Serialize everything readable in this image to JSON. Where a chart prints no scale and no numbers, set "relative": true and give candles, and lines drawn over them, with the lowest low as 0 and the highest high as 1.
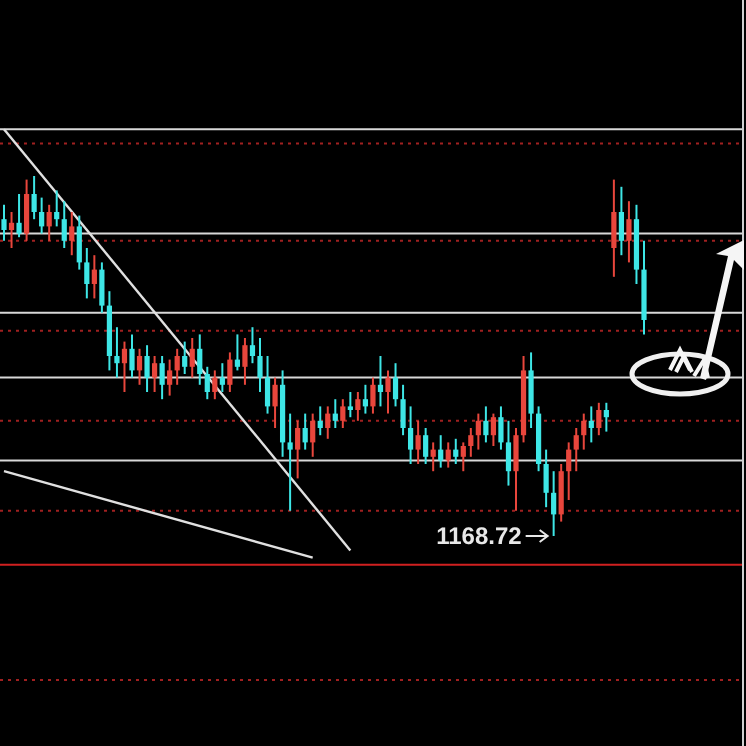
{
  "chart_data": {
    "type": "candlestick",
    "relative": true,
    "categories": [
      null,
      null,
      null,
      null,
      null,
      null,
      null,
      null,
      null,
      null,
      null,
      null,
      null,
      null,
      null,
      null,
      null,
      null,
      null,
      null,
      null,
      null,
      null,
      null,
      null,
      null,
      null,
      null,
      null,
      null,
      null,
      null,
      null,
      null,
      null,
      null,
      null,
      null,
      null,
      null,
      null,
      null,
      null,
      null,
      null,
      null,
      null,
      null,
      null,
      null,
      null,
      null,
      null,
      null,
      null,
      null,
      null,
      null,
      null,
      null,
      null,
      null,
      null,
      null,
      null,
      null,
      null,
      null,
      null,
      null,
      null,
      null,
      null,
      null,
      null,
      null,
      null,
      null,
      null,
      null,
      null,
      null,
      null,
      null,
      null,
      null
    ],
    "ohlc": [
      [
        0.88,
        0.92,
        0.82,
        0.85
      ],
      [
        0.85,
        0.9,
        0.8,
        0.87
      ],
      [
        0.87,
        0.95,
        0.83,
        0.84
      ],
      [
        0.84,
        0.99,
        0.82,
        0.95
      ],
      [
        0.95,
        1.0,
        0.88,
        0.9
      ],
      [
        0.9,
        0.94,
        0.84,
        0.86
      ],
      [
        0.86,
        0.92,
        0.82,
        0.9
      ],
      [
        0.9,
        0.96,
        0.86,
        0.88
      ],
      [
        0.88,
        0.93,
        0.8,
        0.82
      ],
      [
        0.82,
        0.9,
        0.78,
        0.86
      ],
      [
        0.86,
        0.89,
        0.74,
        0.76
      ],
      [
        0.76,
        0.8,
        0.66,
        0.7
      ],
      [
        0.7,
        0.78,
        0.66,
        0.74
      ],
      [
        0.74,
        0.76,
        0.62,
        0.64
      ],
      [
        0.64,
        0.68,
        0.46,
        0.5
      ],
      [
        0.5,
        0.58,
        0.44,
        0.48
      ],
      [
        0.48,
        0.54,
        0.4,
        0.52
      ],
      [
        0.52,
        0.56,
        0.44,
        0.46
      ],
      [
        0.46,
        0.52,
        0.42,
        0.5
      ],
      [
        0.5,
        0.53,
        0.4,
        0.44
      ],
      [
        0.44,
        0.5,
        0.4,
        0.48
      ],
      [
        0.48,
        0.5,
        0.38,
        0.42
      ],
      [
        0.42,
        0.49,
        0.39,
        0.46
      ],
      [
        0.46,
        0.52,
        0.42,
        0.5
      ],
      [
        0.5,
        0.54,
        0.45,
        0.47
      ],
      [
        0.47,
        0.55,
        0.44,
        0.52
      ],
      [
        0.52,
        0.56,
        0.42,
        0.45
      ],
      [
        0.45,
        0.47,
        0.38,
        0.4
      ],
      [
        0.4,
        0.46,
        0.38,
        0.44
      ],
      [
        0.44,
        0.48,
        0.4,
        0.42
      ],
      [
        0.42,
        0.51,
        0.4,
        0.49
      ],
      [
        0.49,
        0.56,
        0.46,
        0.47
      ],
      [
        0.47,
        0.55,
        0.42,
        0.53
      ],
      [
        0.53,
        0.58,
        0.48,
        0.5
      ],
      [
        0.5,
        0.55,
        0.4,
        0.44
      ],
      [
        0.44,
        0.5,
        0.34,
        0.36
      ],
      [
        0.36,
        0.44,
        0.3,
        0.42
      ],
      [
        0.42,
        0.46,
        0.22,
        0.26
      ],
      [
        0.26,
        0.34,
        0.07,
        0.24
      ],
      [
        0.24,
        0.32,
        0.16,
        0.3
      ],
      [
        0.3,
        0.34,
        0.24,
        0.26
      ],
      [
        0.26,
        0.34,
        0.22,
        0.32
      ],
      [
        0.32,
        0.36,
        0.28,
        0.3
      ],
      [
        0.3,
        0.36,
        0.27,
        0.34
      ],
      [
        0.34,
        0.38,
        0.3,
        0.32
      ],
      [
        0.32,
        0.38,
        0.3,
        0.36
      ],
      [
        0.36,
        0.4,
        0.33,
        0.35
      ],
      [
        0.35,
        0.4,
        0.32,
        0.38
      ],
      [
        0.38,
        0.42,
        0.34,
        0.36
      ],
      [
        0.36,
        0.44,
        0.34,
        0.42
      ],
      [
        0.42,
        0.5,
        0.36,
        0.4
      ],
      [
        0.4,
        0.46,
        0.34,
        0.44
      ],
      [
        0.44,
        0.48,
        0.36,
        0.38
      ],
      [
        0.38,
        0.42,
        0.28,
        0.3
      ],
      [
        0.3,
        0.36,
        0.2,
        0.24
      ],
      [
        0.24,
        0.32,
        0.2,
        0.28
      ],
      [
        0.28,
        0.3,
        0.2,
        0.22
      ],
      [
        0.22,
        0.26,
        0.18,
        0.24
      ],
      [
        0.24,
        0.28,
        0.19,
        0.21
      ],
      [
        0.21,
        0.26,
        0.19,
        0.24
      ],
      [
        0.24,
        0.27,
        0.2,
        0.22
      ],
      [
        0.22,
        0.26,
        0.18,
        0.25
      ],
      [
        0.25,
        0.3,
        0.22,
        0.28
      ],
      [
        0.28,
        0.34,
        0.24,
        0.32
      ],
      [
        0.32,
        0.36,
        0.26,
        0.28
      ],
      [
        0.28,
        0.34,
        0.25,
        0.33
      ],
      [
        0.33,
        0.36,
        0.24,
        0.26
      ],
      [
        0.26,
        0.32,
        0.14,
        0.18
      ],
      [
        0.18,
        0.3,
        0.07,
        0.28
      ],
      [
        0.28,
        0.5,
        0.26,
        0.46
      ],
      [
        0.46,
        0.51,
        0.3,
        0.34
      ],
      [
        0.34,
        0.36,
        0.18,
        0.2
      ],
      [
        0.2,
        0.24,
        0.08,
        0.12
      ],
      [
        0.12,
        0.18,
        0.0,
        0.06
      ],
      [
        0.06,
        0.2,
        0.04,
        0.18
      ],
      [
        0.18,
        0.26,
        0.1,
        0.24
      ],
      [
        0.24,
        0.3,
        0.18,
        0.28
      ],
      [
        0.28,
        0.34,
        0.24,
        0.32
      ],
      [
        0.32,
        0.36,
        0.26,
        0.3
      ],
      [
        0.3,
        0.37,
        0.28,
        0.35
      ],
      [
        0.35,
        0.37,
        0.29,
        0.33
      ],
      [
        0.8,
        0.99,
        0.72,
        0.9
      ],
      [
        0.9,
        0.97,
        0.78,
        0.82
      ],
      [
        0.82,
        0.93,
        0.76,
        0.88
      ],
      [
        0.88,
        0.92,
        0.7,
        0.74
      ],
      [
        0.74,
        0.82,
        0.56,
        0.6
      ]
    ],
    "series": [
      {
        "type": "line",
        "color": "#e0e0e0",
        "values": [
          1.13,
          null,
          null,
          null,
          null,
          null,
          null,
          null,
          null,
          null,
          null,
          null,
          null,
          null,
          null,
          null,
          null,
          null,
          null,
          null,
          null,
          null,
          null,
          null,
          null,
          null,
          null,
          null,
          null,
          null,
          null,
          null,
          null,
          null,
          null,
          null,
          null,
          null,
          null,
          null,
          null,
          null,
          null,
          null,
          null,
          null,
          -0.04,
          null,
          null,
          null,
          null,
          null,
          null,
          null,
          null,
          null,
          null,
          null,
          null,
          null,
          null,
          null,
          null,
          null,
          null,
          null,
          null,
          null,
          null,
          null,
          null,
          null,
          null,
          null,
          null,
          null,
          null,
          null,
          null,
          null,
          null,
          null,
          null,
          null,
          null,
          null
        ]
      },
      {
        "type": "line",
        "color": "#e0e0e0",
        "values": [
          0.18,
          null,
          null,
          null,
          null,
          null,
          null,
          null,
          null,
          null,
          null,
          null,
          null,
          null,
          null,
          null,
          null,
          null,
          null,
          null,
          null,
          null,
          null,
          null,
          null,
          null,
          null,
          null,
          null,
          null,
          null,
          null,
          null,
          null,
          null,
          null,
          null,
          null,
          null,
          null,
          null,
          -0.06,
          null,
          null,
          null,
          null,
          null,
          null,
          null,
          null,
          null,
          null,
          null,
          null,
          null,
          null,
          null,
          null,
          null,
          null,
          null,
          null,
          null,
          null,
          null,
          null,
          null,
          null,
          null,
          null,
          null,
          null,
          null,
          null,
          null,
          null,
          null,
          null,
          null,
          null,
          null,
          null,
          null,
          null,
          null,
          null
        ]
      }
    ],
    "ref_lines": [
      {
        "axis": "y",
        "value": 1.13,
        "color": "#d8d8d8",
        "line_style": "solid"
      },
      {
        "axis": "y",
        "value": 1.09,
        "color": "#a02020",
        "line_style": "dotted"
      },
      {
        "axis": "y",
        "value": 0.84,
        "color": "#d8d8d8",
        "line_style": "solid"
      },
      {
        "axis": "y",
        "value": 0.82,
        "color": "#a02020",
        "line_style": "dotted"
      },
      {
        "axis": "y",
        "value": 0.62,
        "color": "#d8d8d8",
        "line_style": "solid"
      },
      {
        "axis": "y",
        "value": 0.57,
        "color": "#a02020",
        "line_style": "dotted"
      },
      {
        "axis": "y",
        "value": 0.44,
        "color": "#d8d8d8",
        "line_style": "solid"
      },
      {
        "axis": "y",
        "value": 0.32,
        "color": "#a02020",
        "line_style": "dotted"
      },
      {
        "axis": "y",
        "value": 0.21,
        "color": "#d8d8d8",
        "line_style": "solid"
      },
      {
        "axis": "y",
        "value": 0.07,
        "color": "#a02020",
        "line_style": "dotted"
      },
      {
        "axis": "y",
        "value": -0.08,
        "color": "#d02020",
        "line_style": "solid"
      },
      {
        "axis": "y",
        "value": -0.4,
        "color": "#a02020",
        "line_style": "dotted"
      }
    ],
    "annotations": [
      "1168.72"
    ]
  }
}
